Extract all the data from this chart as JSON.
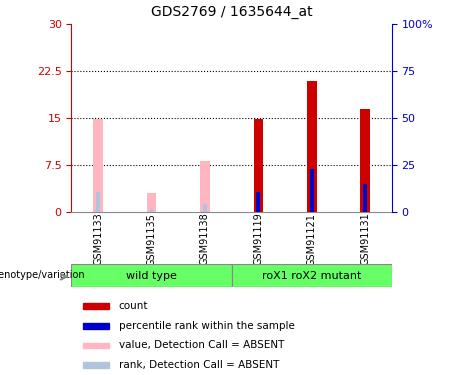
{
  "title": "GDS2769 / 1635644_at",
  "samples": [
    "GSM91133",
    "GSM91135",
    "GSM91138",
    "GSM91119",
    "GSM91121",
    "GSM91131"
  ],
  "absent_value": [
    14.9,
    3.0,
    8.2,
    0,
    0,
    0
  ],
  "absent_rank": [
    3.2,
    0.5,
    1.3,
    0,
    0,
    0
  ],
  "present_value": [
    0,
    0,
    0,
    14.8,
    21.0,
    16.5
  ],
  "present_rank": [
    0,
    0,
    0,
    3.2,
    6.8,
    4.5
  ],
  "left_yticks": [
    0,
    7.5,
    15,
    22.5,
    30
  ],
  "right_yticks": [
    0,
    25,
    50,
    75,
    100
  ],
  "ylim": [
    0,
    30
  ],
  "right_ylim": [
    0,
    100
  ],
  "absent_bar_color": "#ffb6c1",
  "absent_rank_color": "#b0c4de",
  "present_bar_color": "#cc0000",
  "present_rank_color": "#0000cc",
  "left_axis_color": "#cc0000",
  "right_axis_color": "#0000cc",
  "group1_label": "wild type",
  "group2_label": "roX1 roX2 mutant",
  "group_color": "#66ff66",
  "sample_bg_color": "#c8c8c8",
  "legend_items": [
    {
      "label": "count",
      "color": "#cc0000"
    },
    {
      "label": "percentile rank within the sample",
      "color": "#0000cc"
    },
    {
      "label": "value, Detection Call = ABSENT",
      "color": "#ffb6c1"
    },
    {
      "label": "rank, Detection Call = ABSENT",
      "color": "#b0c4de"
    }
  ],
  "geno_label": "genotype/variation"
}
